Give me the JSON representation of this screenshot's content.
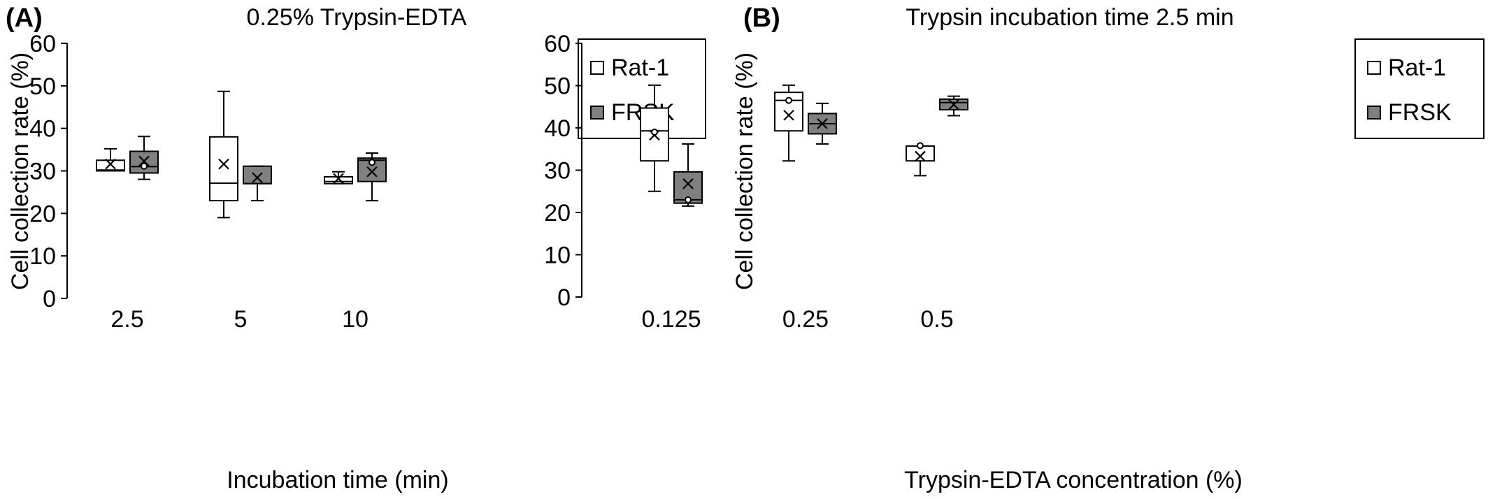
{
  "colors": {
    "rat1_fill": "#ffffff",
    "frsk_fill": "#808080",
    "stroke": "#000000"
  },
  "chart_data": [
    {
      "type": "box",
      "panel_label": "(A)",
      "title": "0.25% Trypsin-EDTA",
      "xlabel": "Incubation time (min)",
      "ylabel": "Cell collection rate (%)",
      "ylim": [
        0,
        60
      ],
      "yticks": [
        0,
        10,
        20,
        30,
        40,
        50,
        60
      ],
      "yticklabels": [
        "0",
        "10",
        "20",
        "30",
        "40",
        "50",
        "60"
      ],
      "categories": [
        "2.5",
        "5",
        "10"
      ],
      "legend_position": "top-right",
      "series": [
        {
          "name": "Rat-1",
          "boxes": [
            {
              "min": 30,
              "q1": 30,
              "median": 30.2,
              "q3": 32.5,
              "max": 35.2,
              "mean": 31.6,
              "outliers": []
            },
            {
              "min": 19,
              "q1": 23,
              "median": 27.1,
              "q3": 38,
              "max": 48.7,
              "mean": 31.6,
              "outliers": []
            },
            {
              "min": 27,
              "q1": 27,
              "median": 27.5,
              "q3": 28.6,
              "max": 29.8,
              "mean": 28.2,
              "outliers": []
            }
          ]
        },
        {
          "name": "FRSK",
          "boxes": [
            {
              "min": 28,
              "q1": 29.5,
              "median": 31,
              "q3": 34.6,
              "max": 38.1,
              "mean": 32.3,
              "outliers": [
                31.1
              ]
            },
            {
              "min": 23,
              "q1": 27,
              "median": 27,
              "q3": 31.1,
              "max": 31.1,
              "mean": 28.4,
              "outliers": []
            },
            {
              "min": 23,
              "q1": 27.5,
              "median": 32.5,
              "q3": 33,
              "max": 34.2,
              "mean": 29.8,
              "outliers": [
                32
              ]
            }
          ]
        }
      ]
    },
    {
      "type": "box",
      "panel_label": "(B)",
      "title": "Trypsin incubation time 2.5 min",
      "xlabel": "Trypsin-EDTA concentration (%)",
      "ylabel": "Cell collection rate (%)",
      "ylim": [
        0,
        60
      ],
      "yticks": [
        0,
        10,
        20,
        30,
        40,
        50,
        60
      ],
      "yticklabels": [
        "0",
        "10",
        "20",
        "30",
        "40",
        "50",
        "60"
      ],
      "categories": [
        "0.125",
        "0.25",
        "0.5"
      ],
      "legend_position": "top-right",
      "series": [
        {
          "name": "Rat-1",
          "boxes": [
            {
              "min": 25,
              "q1": 32.2,
              "median": 39.3,
              "q3": 44.7,
              "max": 50.1,
              "mean": 38.3,
              "outliers": [
                39
              ]
            },
            {
              "min": 32.2,
              "q1": 39.3,
              "median": 46.5,
              "q3": 48.4,
              "max": 50.1,
              "mean": 43,
              "outliers": [
                46.5
              ]
            },
            {
              "min": 28.7,
              "q1": 32.2,
              "median": 35.7,
              "q3": 35.7,
              "max": 35.7,
              "mean": 33.3,
              "outliers": [
                35.8
              ]
            }
          ]
        },
        {
          "name": "FRSK",
          "boxes": [
            {
              "min": 21.5,
              "q1": 22.2,
              "median": 23,
              "q3": 29.6,
              "max": 36.2,
              "mean": 26.8,
              "outliers": [
                23
              ]
            },
            {
              "min": 36.2,
              "q1": 38.6,
              "median": 41,
              "q3": 43.4,
              "max": 45.8,
              "mean": 41,
              "outliers": []
            },
            {
              "min": 42.9,
              "q1": 44.3,
              "median": 46,
              "q3": 46.8,
              "max": 47.5,
              "mean": 45.5,
              "outliers": []
            }
          ]
        }
      ]
    }
  ]
}
